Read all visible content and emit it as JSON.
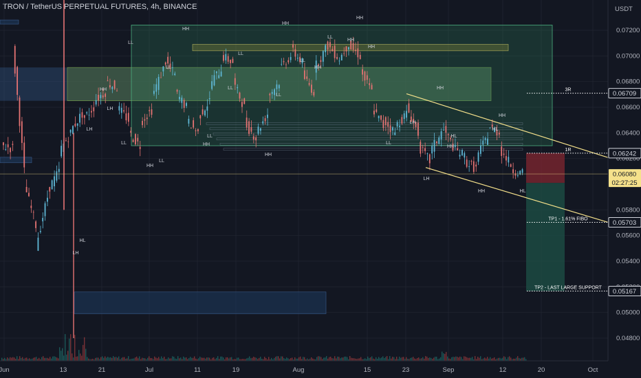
{
  "header": {
    "title": "TRON / TetherUS PERPETUAL FUTURES, 4h, BINANCE",
    "currency": "USDT"
  },
  "colors": {
    "bg": "#131722",
    "up": "#26a69a",
    "down": "#ef5350",
    "trendline": "#f5e18b",
    "zone_green": "#2e7d32",
    "zone_blue": "#1e3a5f"
  },
  "chart_data": {
    "type": "candlestick",
    "x_tick_labels": [
      "Jun",
      "13",
      "21",
      "Jul",
      "11",
      "19",
      "Aug",
      "15",
      "23",
      "Sep",
      "12",
      "20",
      "Oct"
    ],
    "y_tick_labels": [
      "0.07200",
      "0.07000",
      "0.06800",
      "0.06600",
      "0.06400",
      "0.06200",
      "0.05800",
      "0.05600",
      "0.05400",
      "0.05200",
      "0.05000",
      "0.04800"
    ],
    "ylim": [
      0.0472,
      0.0736
    ],
    "series_close_path": [
      [
        0.063,
        0.0628
      ],
      [
        0.0708,
        0.061
      ],
      [
        0.06,
        0.0568
      ],
      [
        0.0552,
        0.059
      ],
      [
        0.0595,
        0.061
      ],
      [
        0.0625,
        0.064
      ],
      [
        0.0642,
        0.0655
      ],
      [
        0.065,
        0.066
      ],
      [
        0.0665,
        0.0672
      ],
      [
        0.068,
        0.0675
      ],
      [
        0.066,
        0.065
      ],
      [
        0.064,
        0.063
      ],
      [
        0.0648,
        0.0658
      ],
      [
        0.0668,
        0.069
      ],
      [
        0.0698,
        0.0685
      ],
      [
        0.0672,
        0.066
      ],
      [
        0.065,
        0.064
      ],
      [
        0.0652,
        0.0665
      ],
      [
        0.0678,
        0.069
      ],
      [
        0.07,
        0.0695
      ],
      [
        0.068,
        0.066
      ],
      [
        0.0648,
        0.0636
      ],
      [
        0.064,
        0.0655
      ],
      [
        0.0668,
        0.068
      ],
      [
        0.069,
        0.07
      ],
      [
        0.0705,
        0.0695
      ],
      [
        0.0685,
        0.0672
      ],
      [
        0.069,
        0.0705
      ],
      [
        0.071,
        0.07
      ],
      [
        0.0695,
        0.071
      ],
      [
        0.0708,
        0.07
      ],
      [
        0.0688,
        0.0672
      ],
      [
        0.066,
        0.0645
      ],
      [
        0.065,
        0.064
      ],
      [
        0.0645,
        0.0655
      ],
      [
        0.066,
        0.064
      ],
      [
        0.063,
        0.0618
      ],
      [
        0.0625,
        0.064
      ],
      [
        0.0645,
        0.063
      ],
      [
        0.0628,
        0.0622
      ],
      [
        0.0618,
        0.0612
      ],
      [
        0.062,
        0.0638
      ],
      [
        0.0645,
        0.064
      ],
      [
        0.0628,
        0.0615
      ],
      [
        0.0612,
        0.0608
      ]
    ],
    "price_labels": [
      {
        "value": 0.06709,
        "text": "0.06709",
        "label": "3R"
      },
      {
        "value": 0.06242,
        "text": "0.06242",
        "label": "1R"
      },
      {
        "value": 0.0608,
        "text": "0.06080",
        "sub": "02:27:25",
        "current": true
      },
      {
        "value": 0.05703,
        "text": "0.05703",
        "label": "TP1 - 1.61% FIBO"
      },
      {
        "value": 0.05167,
        "text": "0.05167",
        "label": "TP2 - LAST LARGE SUPPORT"
      }
    ],
    "structure_labels": [
      "HH",
      "HL",
      "LH",
      "LL",
      "HH",
      "HH",
      "HH",
      "HH",
      "HH",
      "HH",
      "HH",
      "HH",
      "HL",
      "LH",
      "LL",
      "LL",
      "LL",
      "LL",
      "LL",
      "LL",
      "LL",
      "LH",
      "LH",
      "LH",
      "HL",
      "HL",
      "HH",
      "HH",
      "HH",
      "LL",
      "LL",
      "LL",
      "HH",
      "HH"
    ]
  }
}
